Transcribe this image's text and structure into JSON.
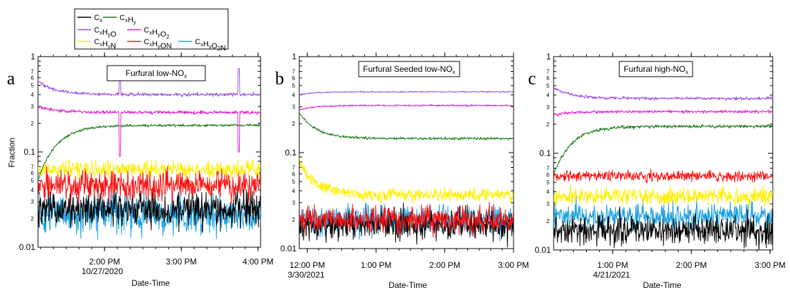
{
  "legend": {
    "entries": [
      {
        "label": "Cx",
        "color": "#000000"
      },
      {
        "label": "CxHy",
        "color": "#1a7a1a"
      },
      {
        "label": "CxHyO",
        "color": "#9b4fe0"
      },
      {
        "label": "CxHyO2",
        "color": "#e020d0"
      },
      {
        "label": "CxHyN",
        "color": "#ffee00"
      },
      {
        "label": "CxHyON",
        "color": "#ff1010"
      },
      {
        "label": "CxHyO2N",
        "color": "#1aa0e0"
      }
    ]
  },
  "chart_data": [
    {
      "type": "line",
      "panel": "a",
      "title": "Furfural low-NOx",
      "xlabel": "Date-Time",
      "ylabel": "Fraction",
      "yscale": "log",
      "ylim": [
        0.01,
        1
      ],
      "xlim": [
        "13:08",
        "16:02"
      ],
      "date_label": "10/27/2020",
      "xticks": [
        "2:00 PM",
        "3:00 PM",
        "4:00 PM"
      ],
      "xtick_times": [
        "14:00",
        "15:00",
        "16:00"
      ],
      "yticks": [
        "0.01",
        "0.1",
        "1"
      ],
      "series": [
        {
          "name": "CxHyO",
          "level": 0.4,
          "noise": 0.04,
          "start_level": 0.55,
          "spikes": [
            [
              "14:12",
              0.58
            ],
            [
              "15:45",
              0.75
            ]
          ]
        },
        {
          "name": "CxHyO2",
          "level": 0.26,
          "noise": 0.04,
          "start_level": 0.3,
          "dips": [
            [
              "14:12",
              0.09
            ],
            [
              "15:45",
              0.1
            ]
          ]
        },
        {
          "name": "CxHy",
          "level": 0.19,
          "noise": 0.03,
          "start_level": 0.05
        },
        {
          "name": "CxHyN",
          "level": 0.065,
          "noise": 0.2
        },
        {
          "name": "CxHyON",
          "level": 0.045,
          "noise": 0.35
        },
        {
          "name": "CxHyO2N",
          "level": 0.022,
          "noise": 0.45
        },
        {
          "name": "Cx",
          "level": 0.025,
          "noise": 0.4
        }
      ]
    },
    {
      "type": "line",
      "panel": "b",
      "title": "Furfural Seeded low-NOx",
      "xlabel": "Date-Time",
      "ylabel": "",
      "yscale": "log",
      "ylim": [
        0.01,
        1
      ],
      "xlim": [
        "11:53",
        "15:00"
      ],
      "date_label": "3/30/2021",
      "xticks": [
        "12:00 PM",
        "1:00 PM",
        "2:00 PM",
        "3:00 PM"
      ],
      "xtick_times": [
        "12:00",
        "13:00",
        "14:00",
        "15:00"
      ],
      "yticks": [
        "0.01",
        "0.1",
        "1"
      ],
      "series": [
        {
          "name": "CxHyO",
          "level": 0.43,
          "noise": 0.015,
          "start_level": 0.4
        },
        {
          "name": "CxHyO2",
          "level": 0.31,
          "noise": 0.02,
          "start_level": 0.28
        },
        {
          "name": "CxHy",
          "level": 0.14,
          "noise": 0.03,
          "start_level": 0.26
        },
        {
          "name": "CxHyN",
          "level": 0.036,
          "noise": 0.15,
          "start_level": 0.08
        },
        {
          "name": "CxHyON",
          "level": 0.02,
          "noise": 0.3
        },
        {
          "name": "CxHyO2N",
          "level": 0.02,
          "noise": 0.35
        },
        {
          "name": "Cx",
          "level": 0.018,
          "noise": 0.35
        }
      ]
    },
    {
      "type": "line",
      "panel": "c",
      "title": "Furfural high-NOx",
      "xlabel": "Date-Time",
      "ylabel": "",
      "yscale": "log",
      "ylim": [
        0.01,
        1
      ],
      "xlim": [
        "12:15",
        "15:02"
      ],
      "date_label": "4/21/2021",
      "xticks": [
        "1:00 PM",
        "2:00 PM",
        "3:00 PM"
      ],
      "xtick_times": [
        "13:00",
        "14:00",
        "15:00"
      ],
      "yticks": [
        "0.01",
        "0.1",
        "1"
      ],
      "series": [
        {
          "name": "CxHyO",
          "level": 0.37,
          "noise": 0.035,
          "start_level": 0.48
        },
        {
          "name": "CxHyO2",
          "level": 0.27,
          "noise": 0.035,
          "start_level": 0.25
        },
        {
          "name": "CxHy",
          "level": 0.19,
          "noise": 0.04,
          "start_level": 0.06
        },
        {
          "name": "CxHyON",
          "level": 0.058,
          "noise": 0.12
        },
        {
          "name": "CxHyN",
          "level": 0.036,
          "noise": 0.2
        },
        {
          "name": "CxHyO2N",
          "level": 0.022,
          "noise": 0.3
        },
        {
          "name": "Cx",
          "level": 0.016,
          "noise": 0.35
        }
      ]
    }
  ]
}
